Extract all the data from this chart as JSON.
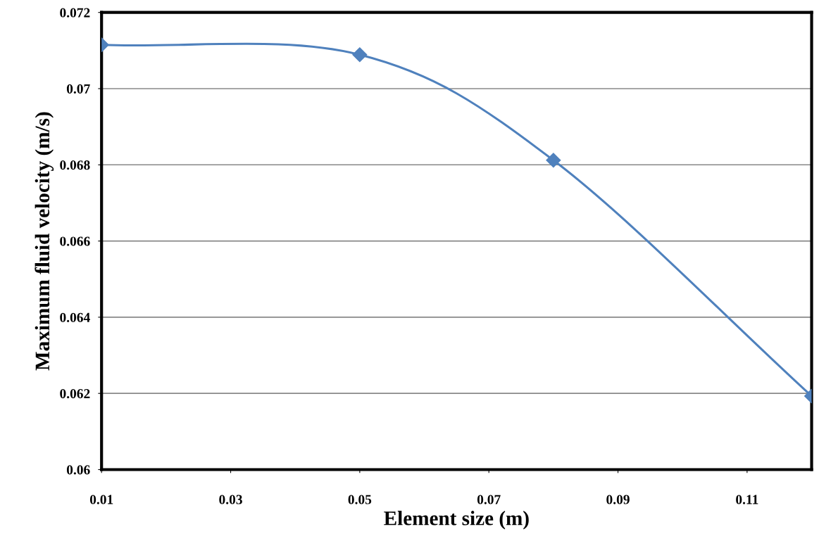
{
  "chart_data": {
    "type": "line",
    "xlabel": "Element size (m)",
    "ylabel": "Maximum fluid velocity (m/s)",
    "x": [
      0.01,
      0.05,
      0.08,
      0.12
    ],
    "series": [
      {
        "color": "#4f81bd",
        "values": [
          0.07115,
          0.07089,
          0.06812,
          0.06193
        ]
      }
    ],
    "xlim": [
      0.01,
      0.12
    ],
    "xticks": [
      0.01,
      0.03,
      0.05,
      0.07,
      0.09,
      0.11
    ],
    "ylim": [
      0.06,
      0.072
    ],
    "yticks": [
      0.06,
      0.062,
      0.064,
      0.066,
      0.068,
      0.07,
      0.072
    ],
    "grid": "y",
    "marker": "diamond",
    "line_style": "solid",
    "legend": false
  }
}
